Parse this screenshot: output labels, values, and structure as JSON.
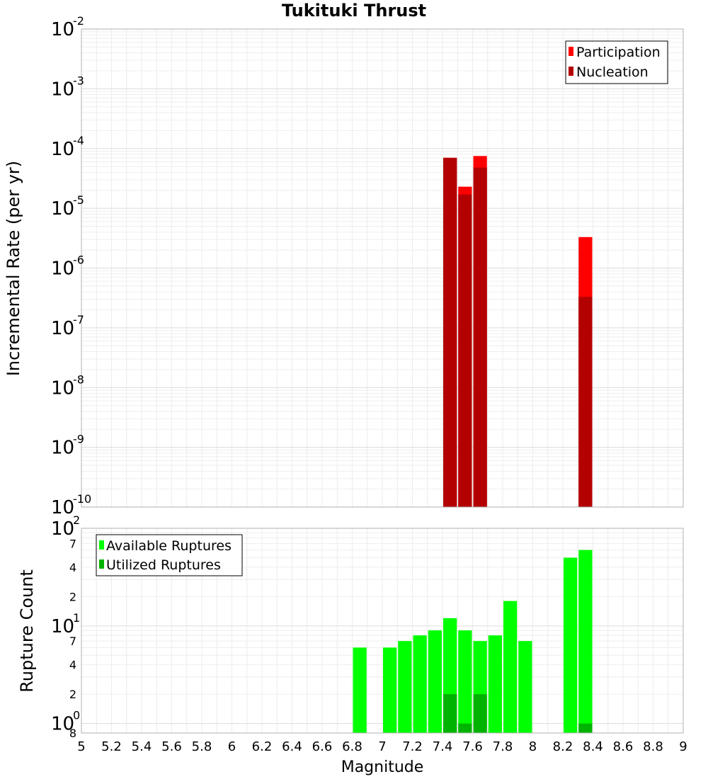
{
  "chart_data": [
    {
      "type": "bar",
      "title": "Tukituki Thrust",
      "ylabel": "Incremental Rate (per yr)",
      "xlabel": "",
      "yscale": "log",
      "ylim": [
        1e-10,
        0.01
      ],
      "xlim": [
        5,
        9
      ],
      "bin_width": 0.1,
      "grid": true,
      "legend_position": "top-right",
      "x": [
        7.45,
        7.55,
        7.65,
        8.35
      ],
      "series": [
        {
          "name": "Participation",
          "color": "#ff0000",
          "values": [
            7e-05,
            2.3e-05,
            7.5e-05,
            3.3e-06
          ]
        },
        {
          "name": "Nucleation",
          "color": "#b30000",
          "values": [
            7e-05,
            1.7e-05,
            4.8e-05,
            3.3e-07
          ]
        }
      ],
      "y_major_ticks": [
        {
          "base": "10",
          "exp": "-2"
        },
        {
          "base": "10",
          "exp": "-3"
        },
        {
          "base": "10",
          "exp": "-4"
        },
        {
          "base": "10",
          "exp": "-5"
        },
        {
          "base": "10",
          "exp": "-6"
        },
        {
          "base": "10",
          "exp": "-7"
        },
        {
          "base": "10",
          "exp": "-8"
        },
        {
          "base": "10",
          "exp": "-9"
        },
        {
          "base": "10",
          "exp": "-10"
        }
      ]
    },
    {
      "type": "bar",
      "ylabel": "Rupture Count",
      "xlabel": "Magnitude",
      "yscale": "log",
      "ylim": [
        0.8,
        100
      ],
      "xlim": [
        5,
        9
      ],
      "bin_width": 0.1,
      "grid": true,
      "legend_position": "top-left",
      "x": [
        6.85,
        7.05,
        7.15,
        7.25,
        7.35,
        7.45,
        7.55,
        7.65,
        7.75,
        7.85,
        7.95,
        8.25,
        8.35
      ],
      "series": [
        {
          "name": "Available Ruptures",
          "color": "#00ff00",
          "values": [
            6,
            6,
            7,
            8,
            9,
            12,
            9,
            7,
            8,
            18,
            7,
            50,
            60
          ]
        },
        {
          "name": "Utilized Ruptures",
          "color": "#00b300",
          "values": [
            0,
            0,
            0,
            0,
            0,
            2,
            1,
            2,
            0,
            0,
            0,
            0,
            1
          ]
        }
      ],
      "y_major_ticks": [
        {
          "base": "10",
          "exp": "2"
        },
        {
          "base": "10",
          "exp": "1"
        },
        {
          "base": "10",
          "exp": "0"
        }
      ],
      "y_minor_labels": [
        "7",
        "4",
        "2",
        "7",
        "4",
        "2",
        "8"
      ],
      "x_tick_labels": [
        "5",
        "5.2",
        "5.4",
        "5.6",
        "5.8",
        "6",
        "6.2",
        "6.4",
        "6.6",
        "6.8",
        "7",
        "7.2",
        "7.4",
        "7.6",
        "7.8",
        "8",
        "8.2",
        "8.4",
        "8.6",
        "8.8",
        "9"
      ]
    }
  ]
}
